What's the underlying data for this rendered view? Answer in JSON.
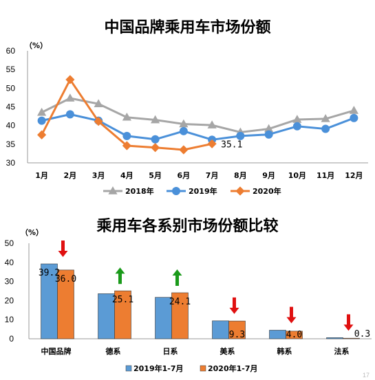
{
  "page_number": "17",
  "chart_data": [
    {
      "type": "line",
      "title": "中国品牌乘用车市场份额",
      "unit": "（%）",
      "categories": [
        "1月",
        "2月",
        "3月",
        "4月",
        "5月",
        "6月",
        "7月",
        "8月",
        "9月",
        "10月",
        "11月",
        "12月"
      ],
      "ylim": [
        30,
        60
      ],
      "yticks": [
        30,
        35,
        40,
        45,
        50,
        55,
        60
      ],
      "grid": false,
      "legend_position": "bottom",
      "series": [
        {
          "name": "2018年",
          "color": "#a6a6a6",
          "marker": "triangle",
          "values": [
            43.5,
            47.3,
            45.8,
            42.2,
            41.5,
            40.4,
            40.1,
            38.2,
            39.1,
            41.6,
            41.8,
            44.0
          ]
        },
        {
          "name": "2019年",
          "color": "#4a90d9",
          "marker": "circle",
          "values": [
            41.3,
            43.0,
            41.3,
            37.2,
            36.3,
            38.5,
            36.2,
            37.2,
            37.6,
            39.8,
            39.1,
            42.0
          ]
        },
        {
          "name": "2020年",
          "color": "#ed7d31",
          "marker": "diamond",
          "values": [
            37.5,
            52.3,
            41.1,
            34.6,
            34.1,
            33.5,
            35.1,
            null,
            null,
            null,
            null,
            null
          ]
        }
      ],
      "annotations": [
        {
          "series": "2020年",
          "index": 6,
          "text": "35.1"
        }
      ]
    },
    {
      "type": "bar",
      "title": "乘用车各系别市场份额比较",
      "unit": "（%）",
      "categories": [
        "中国品牌",
        "德系",
        "日系",
        "美系",
        "韩系",
        "法系"
      ],
      "ylim": [
        0,
        50
      ],
      "yticks": [
        0,
        10,
        20,
        30,
        40,
        50
      ],
      "grid": false,
      "legend_position": "bottom",
      "series": [
        {
          "name": "2019年1-7月",
          "color": "#5b9bd5",
          "values": [
            39.2,
            23.6,
            21.7,
            9.4,
            4.5,
            0.6
          ]
        },
        {
          "name": "2020年1-7月",
          "color": "#ed7d31",
          "values": [
            36.0,
            25.1,
            24.1,
            9.3,
            4.0,
            0.3
          ]
        }
      ],
      "data_labels": {
        "2019年1-7月": [
          "39.2",
          "",
          "",
          "",
          "",
          ""
        ],
        "2020年1-7月": [
          "36.0",
          "25.1",
          "24.1",
          "9.3",
          "4.0",
          "0.3"
        ]
      },
      "trend_arrows": [
        "down",
        "up",
        "up",
        "down",
        "down",
        "down"
      ],
      "arrow_colors": {
        "up": "#1a9a1a",
        "down": "#e01010"
      }
    }
  ]
}
